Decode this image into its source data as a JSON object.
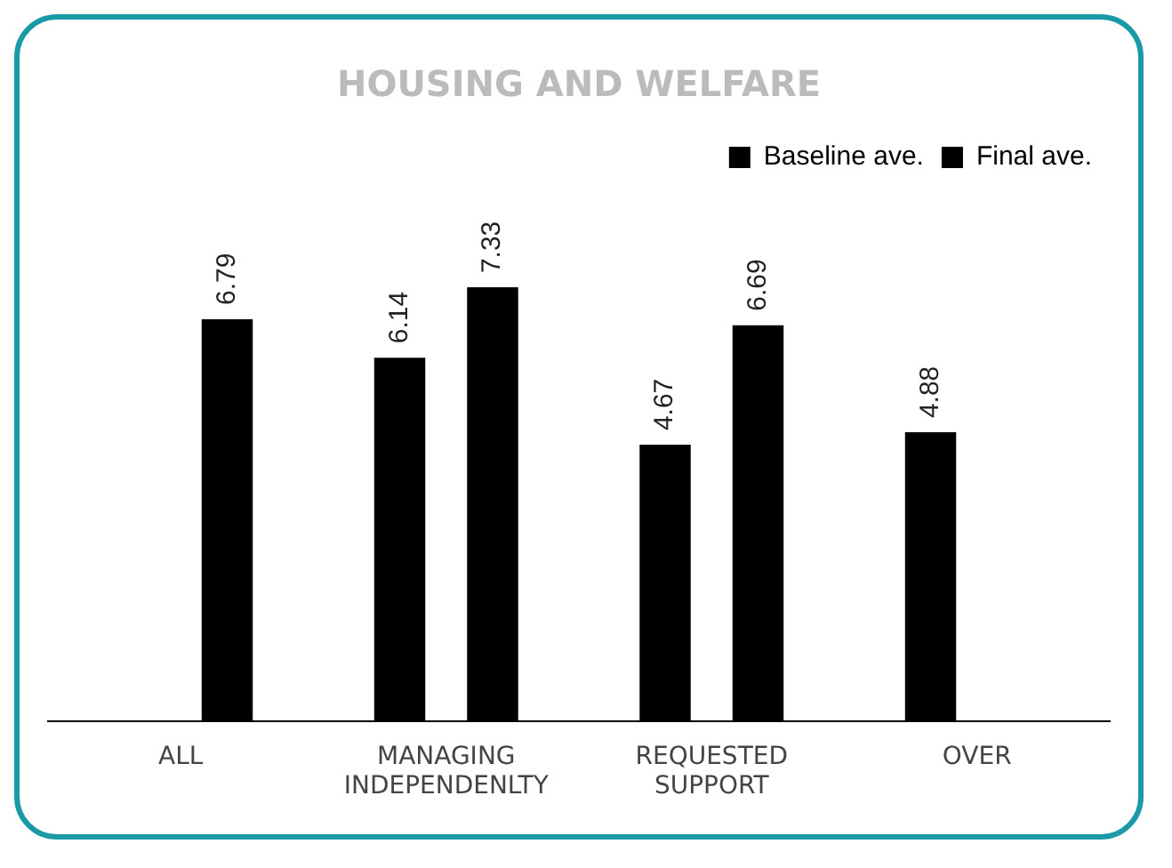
{
  "chart_data": {
    "type": "bar",
    "title": "HOUSING AND WELFARE",
    "categories": [
      "ALL",
      "MANAGING INDEPENDENLTY",
      "REQUESTED SUPPORT",
      "OVER"
    ],
    "series": [
      {
        "name": "Baseline ave.",
        "color": "#000000",
        "values": [
          null,
          6.14,
          4.67,
          4.88
        ]
      },
      {
        "name": "Final ave.",
        "color": "#000000",
        "values": [
          6.79,
          7.33,
          6.69,
          null
        ]
      }
    ],
    "data_labels": true,
    "legend": "top right",
    "grid": false,
    "tick_labels": "x"
  }
}
